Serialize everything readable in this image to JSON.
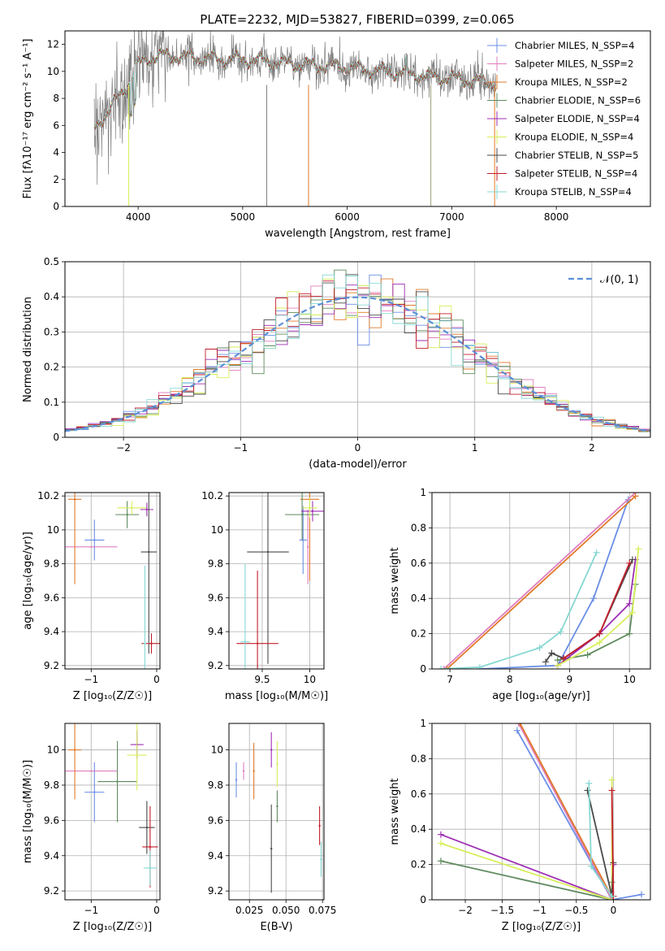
{
  "figure": {
    "title": "PLATE=2232, MJD=53827, FIBERID=0399, z=0.065"
  },
  "colors": {
    "data_spectrum": "#808080",
    "gauss": "#5b8fd6",
    "models": [
      "#6b8fe6",
      "#e07fbf",
      "#e07a2a",
      "#5f8a5f",
      "#9e2fb4",
      "#d8ee5a",
      "#4a4a4a",
      "#c41e2a",
      "#86d8d2"
    ]
  },
  "chart_data": [
    {
      "id": "spectrum",
      "type": "line",
      "xlabel": "wavelength [Angstrom, rest frame]",
      "ylabel": "Flux [fλ10⁻¹⁷ erg cm⁻² s⁻¹ A⁻¹]",
      "xlim": [
        3300,
        8900
      ],
      "ylim": [
        0,
        13
      ],
      "xticks": [
        4000,
        5000,
        6000,
        7000,
        8000
      ],
      "yticks": [
        0,
        2,
        4,
        6,
        8,
        10,
        12
      ],
      "grid": false,
      "legend_position": "top-right",
      "series": [
        {
          "name": "Chabrier MILES, N_SSP=4"
        },
        {
          "name": "Salpeter MILES, N_SSP=2"
        },
        {
          "name": "Kroupa MILES, N_SSP=2"
        },
        {
          "name": "Chabrier ELODIE, N_SSP=6"
        },
        {
          "name": "Salpeter ELODIE, N_SSP=4"
        },
        {
          "name": "Kroupa ELODIE, N_SSP=4"
        },
        {
          "name": "Chabrier STELIB, N_SSP=5"
        },
        {
          "name": "Salpeter STELIB, N_SSP=4"
        },
        {
          "name": "Kroupa STELIB, N_SSP=4"
        }
      ],
      "model_anchors": {
        "x": [
          3580,
          3650,
          3720,
          3800,
          3900,
          4000,
          4100,
          4250,
          4400,
          4600,
          4800,
          5000,
          5200,
          5400,
          5600,
          5800,
          6000,
          6200,
          6400,
          6600,
          6800,
          7000,
          7200,
          7400,
          7420
        ],
        "y": [
          5.8,
          6.5,
          7.0,
          8.0,
          9.0,
          10.5,
          11.0,
          11.2,
          11.1,
          11.0,
          10.9,
          10.9,
          10.8,
          10.6,
          10.5,
          10.4,
          10.3,
          10.1,
          10.0,
          9.8,
          9.6,
          9.5,
          9.3,
          9.2,
          9.1
        ]
      }
    },
    {
      "id": "residuals",
      "type": "histogram",
      "xlabel": "(data-model)/error",
      "ylabel": "Normed distribution",
      "xlim": [
        -2.5,
        2.5
      ],
      "ylim": [
        0,
        0.5
      ],
      "xticks": [
        -2,
        -1,
        0,
        1,
        2
      ],
      "yticks": [
        0.0,
        0.1,
        0.2,
        0.3,
        0.4,
        0.5
      ],
      "grid": true,
      "legend_position": "top-right",
      "reference": {
        "name": "𝒩(0, 1)",
        "mean": 0,
        "sigma": 1
      },
      "bin_width": 0.1
    },
    {
      "id": "age-vs-Z",
      "type": "scatter",
      "xlabel": "Z [log₁₀(Z/Z☉)]",
      "ylabel": "age  [log₁₀(age/yr)]",
      "xlim": [
        -1.4,
        0.05
      ],
      "ylim": [
        9.18,
        10.22
      ],
      "xticks": [
        -1,
        0
      ],
      "yticks": [
        9.2,
        9.4,
        9.6,
        9.8,
        10.0,
        10.2
      ],
      "grid": true,
      "points": [
        {
          "x": -0.95,
          "y": 9.94,
          "xerr": 0.15,
          "yerr": 0.12
        },
        {
          "x": -1.0,
          "y": 9.9,
          "xerr": 0.4,
          "yerr": 0.0
        },
        {
          "x": -1.25,
          "y": 10.18,
          "xerr": 0.1,
          "yerr": 0.5
        },
        {
          "x": -0.45,
          "y": 10.09,
          "xerr": 0.18,
          "yerr": 0.08
        },
        {
          "x": -0.15,
          "y": 10.12,
          "xerr": 0.1,
          "yerr": 0.04
        },
        {
          "x": -0.38,
          "y": 10.13,
          "xerr": 0.22,
          "yerr": 0.04
        },
        {
          "x": -0.12,
          "y": 9.87,
          "xerr": 0.12,
          "yerr": 0.6
        },
        {
          "x": -0.08,
          "y": 9.33,
          "xerr": 0.15,
          "yerr": 0.06
        },
        {
          "x": -0.18,
          "y": 9.33,
          "xerr": 0.02,
          "yerr": 0.46
        }
      ]
    },
    {
      "id": "age-vs-mass",
      "type": "scatter",
      "xlabel": "mass [log₁₀(M/M☉)]",
      "ylabel": "",
      "xlim": [
        9.15,
        10.15
      ],
      "ylim": [
        9.18,
        10.22
      ],
      "xticks": [
        9.5,
        10.0
      ],
      "yticks": [
        9.2,
        9.4,
        9.6,
        9.8,
        10.0,
        10.2
      ],
      "grid": true,
      "points": [
        {
          "x": 9.93,
          "y": 9.94,
          "xerr": 0.04,
          "yerr": 0.2
        },
        {
          "x": 9.98,
          "y": 9.9,
          "xerr": 0.0,
          "yerr": 0.22
        },
        {
          "x": 10.0,
          "y": 10.18,
          "xerr": 0.1,
          "yerr": 0.48
        },
        {
          "x": 9.92,
          "y": 10.09,
          "xerr": 0.18,
          "yerr": 0.15
        },
        {
          "x": 10.03,
          "y": 10.11,
          "xerr": 0.12,
          "yerr": 0.06
        },
        {
          "x": 10.0,
          "y": 10.13,
          "xerr": 0.08,
          "yerr": 0.06
        },
        {
          "x": 9.56,
          "y": 9.87,
          "xerr": 0.22,
          "yerr": 0.66
        },
        {
          "x": 9.45,
          "y": 9.33,
          "xerr": 0.22,
          "yerr": 0.43
        },
        {
          "x": 9.32,
          "y": 9.34,
          "xerr": 0.05,
          "yerr": 0.46
        }
      ]
    },
    {
      "id": "weight-vs-age",
      "type": "line",
      "xlabel": "age  [log₁₀(age/yr)]",
      "ylabel": "mass weight",
      "xlim": [
        6.7,
        10.35
      ],
      "ylim": [
        0,
        1
      ],
      "xticks": [
        7,
        8,
        9,
        10
      ],
      "yticks": [
        0.0,
        0.2,
        0.4,
        0.6,
        0.8,
        1.0
      ],
      "grid": true,
      "series": [
        {
          "x": [
            7.5,
            8.8,
            9.4,
            9.98
          ],
          "y": [
            0.0,
            0.02,
            0.4,
            0.96
          ]
        },
        {
          "x": [
            6.9,
            10.1
          ],
          "y": [
            0.0,
            1.0
          ]
        },
        {
          "x": [
            6.95,
            10.1
          ],
          "y": [
            0.0,
            0.98
          ]
        },
        {
          "x": [
            8.8,
            9.3,
            10.0,
            10.1
          ],
          "y": [
            0.05,
            0.08,
            0.2,
            0.48
          ]
        },
        {
          "x": [
            8.8,
            9.5,
            10.0,
            10.1
          ],
          "y": [
            0.02,
            0.2,
            0.37,
            0.62
          ]
        },
        {
          "x": [
            8.8,
            9.5,
            10.05,
            10.15
          ],
          "y": [
            0.02,
            0.15,
            0.32,
            0.68
          ]
        },
        {
          "x": [
            8.6,
            8.7,
            8.9,
            9.5,
            10.05
          ],
          "y": [
            0.04,
            0.09,
            0.06,
            0.2,
            0.62
          ]
        },
        {
          "x": [
            8.9,
            9.5,
            10.0
          ],
          "y": [
            0.06,
            0.2,
            0.6
          ]
        },
        {
          "x": [
            6.85,
            7.5,
            8.5,
            8.85,
            9.45
          ],
          "y": [
            0.0,
            0.01,
            0.12,
            0.21,
            0.66
          ]
        }
      ]
    },
    {
      "id": "mass-vs-Z",
      "type": "scatter",
      "xlabel": "Z [log₁₀(Z/Z☉)]",
      "ylabel": "mass [log₁₀(M/M☉)]",
      "xlim": [
        -1.4,
        0.05
      ],
      "ylim": [
        9.15,
        10.15
      ],
      "xticks": [
        -1,
        0
      ],
      "yticks": [
        9.2,
        9.4,
        9.6,
        9.8,
        10.0
      ],
      "grid": true,
      "points": [
        {
          "x": -0.95,
          "y": 9.76,
          "xerr": 0.15,
          "yerr": 0.17
        },
        {
          "x": -1.0,
          "y": 9.88,
          "xerr": 0.4,
          "yerr": 0.0
        },
        {
          "x": -1.25,
          "y": 10.0,
          "xerr": 0.1,
          "yerr": 0.28
        },
        {
          "x": -0.6,
          "y": 9.82,
          "xerr": 0.3,
          "yerr": 0.23
        },
        {
          "x": -0.3,
          "y": 10.03,
          "xerr": 0.1,
          "yerr": 0.08
        },
        {
          "x": -0.3,
          "y": 9.97,
          "xerr": 0.15,
          "yerr": 0.2
        },
        {
          "x": -0.15,
          "y": 9.56,
          "xerr": 0.12,
          "yerr": 0.15
        },
        {
          "x": -0.1,
          "y": 9.45,
          "xerr": 0.12,
          "yerr": 0.23
        },
        {
          "x": -0.1,
          "y": 9.33,
          "xerr": 0.1,
          "yerr": 0.1
        }
      ]
    },
    {
      "id": "mass-vs-ebv",
      "type": "scatter",
      "xlabel": "E(B-V)",
      "ylabel": "",
      "xlim": [
        0.011,
        0.076
      ],
      "ylim": [
        9.15,
        10.15
      ],
      "xticks": [
        0.025,
        0.05,
        0.075
      ],
      "yticks": [
        9.2,
        9.4,
        9.6,
        9.8,
        10.0
      ],
      "grid": true,
      "points": [
        {
          "x": 0.016,
          "y": 9.83,
          "xerr": 0,
          "yerr": 0.1
        },
        {
          "x": 0.021,
          "y": 9.88,
          "xerr": 0,
          "yerr": 0.05
        },
        {
          "x": 0.028,
          "y": 9.88,
          "xerr": 0,
          "yerr": 0.16
        },
        {
          "x": 0.044,
          "y": 9.68,
          "xerr": 0,
          "yerr": 0.09
        },
        {
          "x": 0.04,
          "y": 10.0,
          "xerr": 0,
          "yerr": 0.1
        },
        {
          "x": 0.044,
          "y": 9.92,
          "xerr": 0,
          "yerr": 0.13
        },
        {
          "x": 0.04,
          "y": 9.44,
          "xerr": 0,
          "yerr": 0.25
        },
        {
          "x": 0.073,
          "y": 9.57,
          "xerr": 0,
          "yerr": 0.11
        },
        {
          "x": 0.074,
          "y": 9.38,
          "xerr": 0,
          "yerr": 0.1
        }
      ]
    },
    {
      "id": "weight-vs-Z",
      "type": "line",
      "xlabel": "Z [log₁₀(Z/Z☉)]",
      "ylabel": "mass weight",
      "xlim": [
        -2.45,
        0.5
      ],
      "ylim": [
        0,
        1
      ],
      "xticks": [
        -2.0,
        -1.5,
        -1.0,
        -0.5,
        0.0
      ],
      "yticks": [
        0.0,
        0.2,
        0.4,
        0.6,
        0.8,
        1.0
      ],
      "grid": true,
      "series": [
        {
          "x": [
            -1.3,
            -0.02,
            0.38
          ],
          "y": [
            0.96,
            0.0,
            0.03
          ]
        },
        {
          "x": [
            -1.28,
            -0.02
          ],
          "y": [
            1.0,
            0.0
          ]
        },
        {
          "x": [
            -1.26,
            0.0
          ],
          "y": [
            1.0,
            0.0
          ]
        },
        {
          "x": [
            -2.33,
            -0.02,
            -0.02
          ],
          "y": [
            0.22,
            0.0,
            0.1
          ]
        },
        {
          "x": [
            -2.33,
            -0.02,
            0.0
          ],
          "y": [
            0.37,
            0.0,
            0.2
          ]
        },
        {
          "x": [
            -2.33,
            -0.02,
            -0.02
          ],
          "y": [
            0.32,
            0.0,
            0.68
          ]
        },
        {
          "x": [
            -0.35,
            -0.02,
            0.0
          ],
          "y": [
            0.62,
            0.02,
            0.21
          ]
        },
        {
          "x": [
            -0.02,
            0.0
          ],
          "y": [
            0.62,
            0.02
          ]
        },
        {
          "x": [
            -0.33,
            -0.3,
            -0.02
          ],
          "y": [
            0.66,
            0.19,
            0.02
          ]
        }
      ]
    }
  ]
}
